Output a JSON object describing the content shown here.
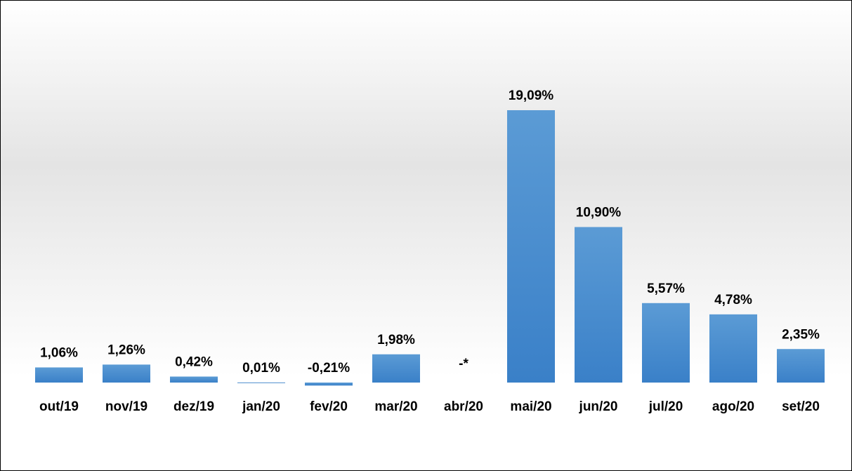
{
  "chart_data": {
    "type": "bar",
    "categories": [
      "out/19",
      "nov/19",
      "dez/19",
      "jan/20",
      "fev/20",
      "mar/20",
      "abr/20",
      "mai/20",
      "jun/20",
      "jul/20",
      "ago/20",
      "set/20"
    ],
    "values": [
      1.06,
      1.26,
      0.42,
      0.01,
      -0.21,
      1.98,
      null,
      19.09,
      10.9,
      5.57,
      4.78,
      2.35
    ],
    "value_labels": [
      "1,06%",
      "1,26%",
      "0,42%",
      "0,01%",
      "-0,21%",
      "1,98%",
      "-*",
      "19,09%",
      "10,90%",
      "5,57%",
      "4,78%",
      "2,35%"
    ],
    "color": "#5b9bd5"
  }
}
